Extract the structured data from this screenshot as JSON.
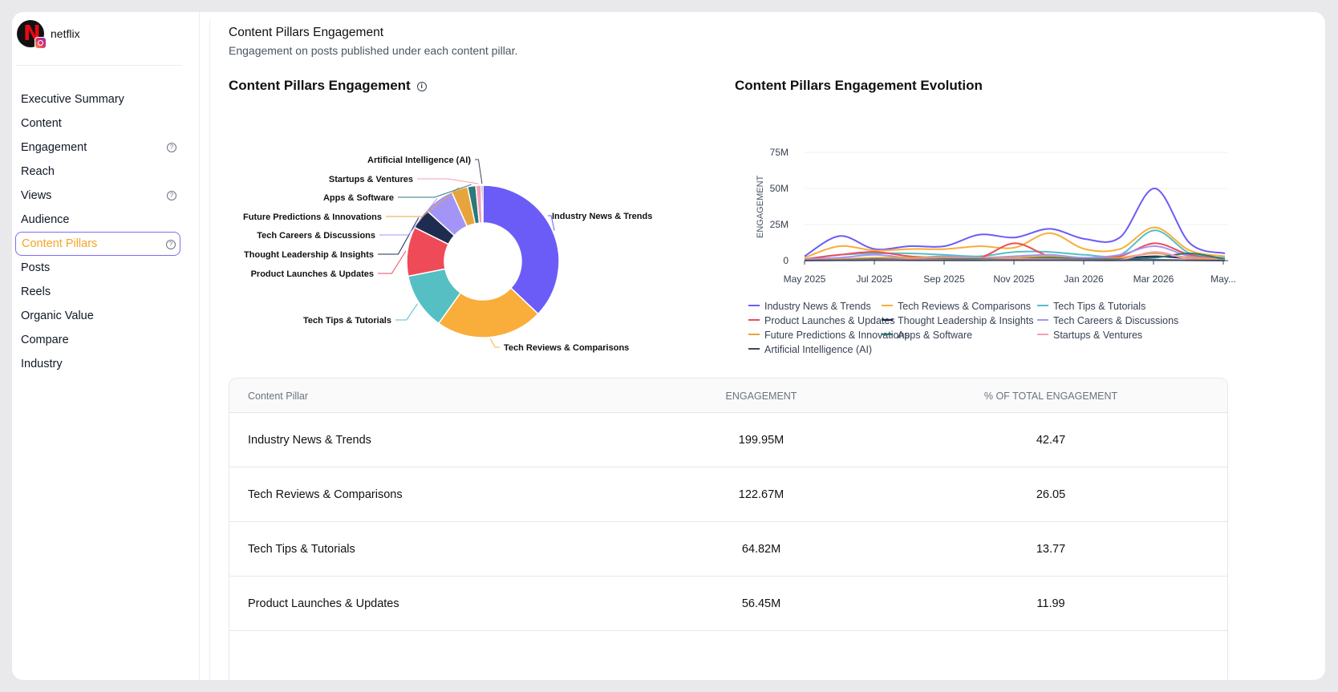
{
  "brand": {
    "name": "netflix",
    "logo_letter": "N"
  },
  "nav": [
    {
      "label": "Executive Summary",
      "help": false,
      "active": false
    },
    {
      "label": "Content",
      "help": false,
      "active": false
    },
    {
      "label": "Engagement",
      "help": true,
      "active": false
    },
    {
      "label": "Reach",
      "help": false,
      "active": false
    },
    {
      "label": "Views",
      "help": true,
      "active": false
    },
    {
      "label": "Audience",
      "help": false,
      "active": false
    },
    {
      "label": "Content Pillars",
      "help": true,
      "active": true
    },
    {
      "label": "Posts",
      "help": false,
      "active": false
    },
    {
      "label": "Reels",
      "help": false,
      "active": false
    },
    {
      "label": "Organic Value",
      "help": false,
      "active": false
    },
    {
      "label": "Compare",
      "help": false,
      "active": false
    },
    {
      "label": "Industry",
      "help": false,
      "active": false
    }
  ],
  "page": {
    "title": "Content Pillars Engagement",
    "subtitle": "Engagement on posts published under each content pillar."
  },
  "colors": {
    "active_text": "#f5a524",
    "active_border": "#7c6cf0"
  },
  "chart_data": [
    {
      "type": "pie",
      "title": "Content Pillars Engagement",
      "categories": [
        "Industry News & Trends",
        "Tech Reviews & Comparisons",
        "Tech Tips & Tutorials",
        "Product Launches & Updates",
        "Thought Leadership & Insights",
        "Tech Careers & Discussions",
        "Future Predictions & Innovations",
        "Apps & Software",
        "Startups & Ventures",
        "Artificial Intelligence (AI)"
      ],
      "values": [
        42.47,
        26.05,
        13.77,
        11.99,
        5.0,
        7.5,
        4.0,
        2.0,
        1.3,
        0.4
      ],
      "colors": [
        "#6c5cf7",
        "#f9ad3a",
        "#55bfc4",
        "#ef4a58",
        "#1e2d4f",
        "#a395f7",
        "#e8a43c",
        "#2b7a78",
        "#f59eb3",
        "#3d4661"
      ]
    },
    {
      "type": "line",
      "title": "Content Pillars Engagement Evolution",
      "ylabel": "ENGAGEMENT",
      "ylim": [
        0,
        75
      ],
      "y_ticks": [
        "0",
        "25M",
        "50M",
        "75M"
      ],
      "x_ticks": [
        "May 2025",
        "Jul 2025",
        "Sep 2025",
        "Nov 2025",
        "Jan 2026",
        "Mar 2026",
        "May..."
      ],
      "x": [
        "May 2025",
        "Jun 2025",
        "Jul 2025",
        "Aug 2025",
        "Sep 2025",
        "Oct 2025",
        "Nov 2025",
        "Dec 2025",
        "Jan 2026",
        "Feb 2026",
        "Mar 2026",
        "Apr 2026",
        "May 2026"
      ],
      "series": [
        {
          "name": "Industry News & Trends",
          "color": "#6c5cf7",
          "values": [
            3,
            17,
            8,
            10,
            10,
            18,
            16,
            22,
            15,
            16,
            50,
            12,
            5
          ]
        },
        {
          "name": "Tech Reviews & Comparisons",
          "color": "#f9ad3a",
          "values": [
            2,
            10,
            7,
            8,
            8,
            10,
            9,
            19,
            8,
            8,
            23,
            7,
            3
          ]
        },
        {
          "name": "Tech Tips & Tutorials",
          "color": "#55bfc4",
          "values": [
            1,
            4,
            5,
            5,
            4,
            3,
            6,
            6,
            4,
            4,
            21,
            5,
            2
          ]
        },
        {
          "name": "Product Launches & Updates",
          "color": "#ef4a58",
          "values": [
            1,
            4,
            6,
            3,
            2,
            2,
            12,
            3,
            2,
            3,
            12,
            4,
            1
          ]
        },
        {
          "name": "Thought Leadership & Insights",
          "color": "#1e2d4f",
          "values": [
            0.5,
            1,
            1.5,
            1,
            2,
            1.5,
            1.5,
            2,
            1,
            1.5,
            3,
            1.5,
            0.5
          ]
        },
        {
          "name": "Tech Careers & Discussions",
          "color": "#a395f7",
          "values": [
            1,
            2,
            4,
            2,
            3,
            2,
            3,
            4,
            2,
            4,
            10,
            3,
            1
          ]
        },
        {
          "name": "Future Predictions & Innovations",
          "color": "#e8a43c",
          "values": [
            0.5,
            1,
            2,
            2,
            2,
            1.5,
            2,
            3,
            1,
            2,
            5,
            2,
            1
          ]
        },
        {
          "name": "Apps & Software",
          "color": "#2b7a78",
          "values": [
            0.3,
            0.5,
            1,
            1,
            1,
            1,
            1,
            2,
            1,
            1,
            2,
            5,
            1
          ]
        },
        {
          "name": "Startups & Ventures",
          "color": "#f59eb3",
          "values": [
            0.3,
            0.5,
            0.5,
            1,
            0.5,
            0.5,
            1,
            1,
            0.5,
            0.5,
            6,
            1,
            0.5
          ]
        },
        {
          "name": "Artificial Intelligence (AI)",
          "color": "#3d4661",
          "values": [
            0.1,
            0.2,
            0.3,
            0.2,
            0.2,
            0.2,
            0.3,
            0.3,
            0.2,
            0.2,
            0.5,
            0.2,
            0.1
          ]
        }
      ]
    }
  ],
  "table": {
    "headers": [
      "Content Pillar",
      "ENGAGEMENT",
      "% OF TOTAL ENGAGEMENT"
    ],
    "rows": [
      [
        "Industry News & Trends",
        "199.95M",
        "42.47"
      ],
      [
        "Tech Reviews & Comparisons",
        "122.67M",
        "26.05"
      ],
      [
        "Tech Tips & Tutorials",
        "64.82M",
        "13.77"
      ],
      [
        "Product Launches & Updates",
        "56.45M",
        "11.99"
      ]
    ]
  }
}
